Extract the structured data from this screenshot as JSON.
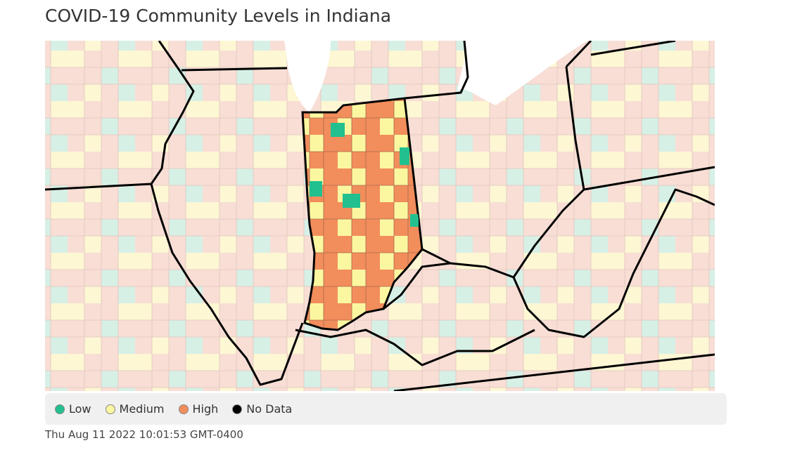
{
  "title": "COVID-19 Community Levels in Indiana",
  "legend": [
    {
      "label": "Low",
      "color": "#22c08f"
    },
    {
      "label": "Medium",
      "color": "#fbf7a0"
    },
    {
      "label": "High",
      "color": "#f28d5c"
    },
    {
      "label": "No Data",
      "color": "#000000"
    }
  ],
  "timestamp": "Thu Aug 11 2022 10:01:53 GMT-0400"
}
